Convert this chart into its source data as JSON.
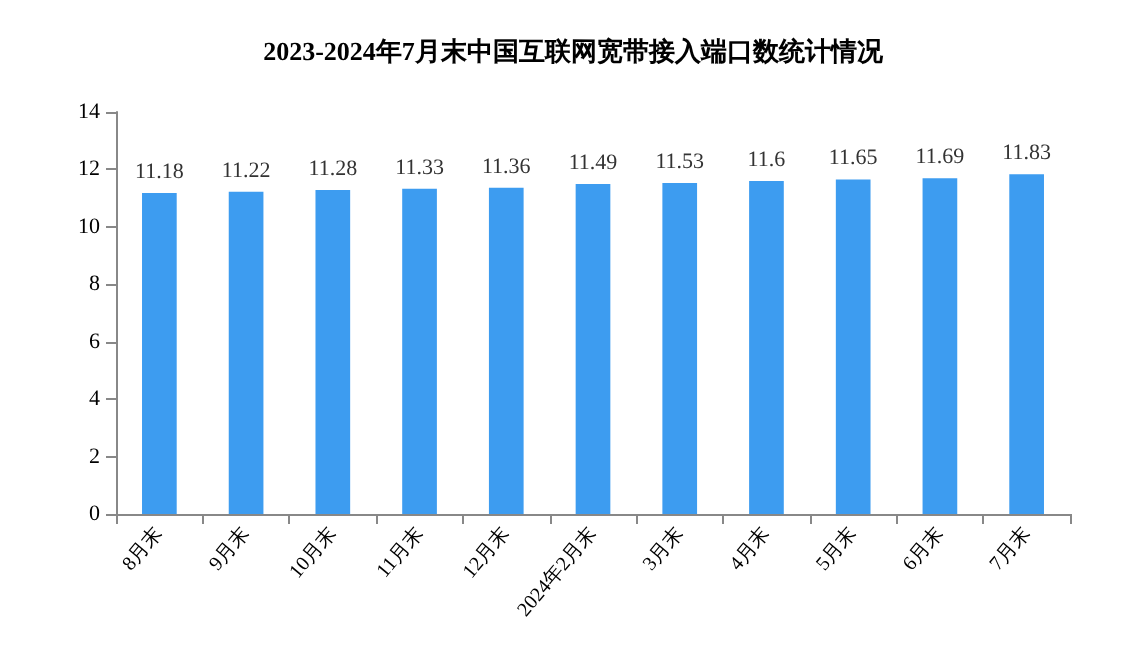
{
  "chart_data": {
    "type": "bar",
    "title": "2023-2024年7月末中国互联网宽带接入端口数统计情况",
    "categories": [
      "8月末",
      "9月末",
      "10月末",
      "11月末",
      "12月末",
      "2024年2月末",
      "3月末",
      "4月末",
      "5月末",
      "6月末",
      "7月末"
    ],
    "values": [
      11.18,
      11.22,
      11.28,
      11.33,
      11.36,
      11.49,
      11.53,
      11.6,
      11.65,
      11.69,
      11.83
    ],
    "color": "#3d9cf0",
    "ylim": [
      0,
      14
    ],
    "yticks": [
      0,
      2,
      4,
      6,
      8,
      10,
      12,
      14
    ],
    "grid": false,
    "data_labels": true
  }
}
